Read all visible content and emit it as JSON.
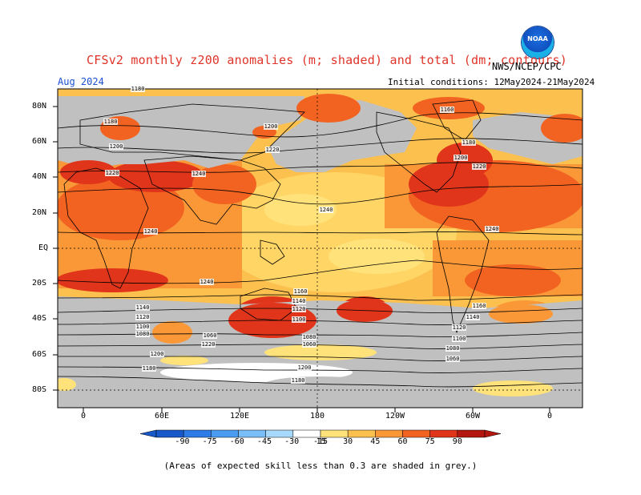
{
  "header": {
    "title": "CFSv2 monthly z200 anomalies (m; shaded) and total (dm; contours)",
    "agency": "NWS/NCEP/CPC",
    "month": "Aug 2024",
    "initial_conditions": "Initial conditions: 12May2024-21May2024",
    "logo_text": "NOAA"
  },
  "map": {
    "lat_labels": [
      "80N",
      "60N",
      "40N",
      "20N",
      "EQ",
      "20S",
      "40S",
      "60S",
      "80S"
    ],
    "lon_labels": [
      "0",
      "60E",
      "120E",
      "180",
      "120W",
      "60W",
      "0"
    ],
    "contour_labels": [
      "1180",
      "1180",
      "1200",
      "1200",
      "1220",
      "1220",
      "1240",
      "1240",
      "1240",
      "1240",
      "1240",
      "1220",
      "1200",
      "1180",
      "1160",
      "1140",
      "1120",
      "1100",
      "1080",
      "1060",
      "1220",
      "1200",
      "1180",
      "1160",
      "1140",
      "1120",
      "1100",
      "1080",
      "1060",
      "1200",
      "1180",
      "1160",
      "1140",
      "1120",
      "1100",
      "1080",
      "1060"
    ],
    "skill_mask_color": "#c0c0c0",
    "land_outline_color": "#000000"
  },
  "colorbar": {
    "labels": [
      "-90",
      "-75",
      "-60",
      "-45",
      "-30",
      "-15",
      "15",
      "30",
      "45",
      "60",
      "75",
      "90"
    ],
    "colors": [
      "#1858c8",
      "#2d7be6",
      "#4a9cf0",
      "#79bef7",
      "#a6d9fb",
      "#ffffff",
      "#ffe27a",
      "#fcc04e",
      "#fa9838",
      "#f26322",
      "#e0351a",
      "#b3170f"
    ]
  },
  "footnote": "(Areas of expected skill less than 0.3 are shaded in grey.)"
}
